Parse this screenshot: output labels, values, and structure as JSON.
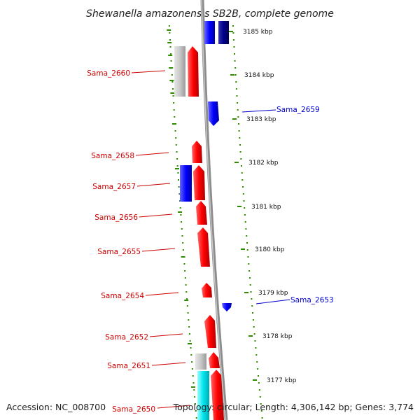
{
  "title": "Shewanella amazonensis SB2B, complete genome",
  "footer": {
    "accession": "Accession: NC_008700",
    "summary": "Topology: circular; Length: 4,306,142 bp; Genes: 3,774"
  },
  "colors": {
    "forward_gene": "#ff0000",
    "reverse_gene": "#0000ff",
    "forward_label": "#cc0000",
    "reverse_label": "#0000cc",
    "other_gene_gray": "#c8c8c8",
    "other_gene_cyan": "#00e5ee",
    "tick_marks": "#2e8b00",
    "backbone": "#8c8c8c"
  },
  "kbp_ticks": [
    "3185 kbp",
    "3184 kbp",
    "3183 kbp",
    "3182 kbp",
    "3181 kbp",
    "3180 kbp",
    "3179 kbp",
    "3178 kbp",
    "3177 kbp"
  ],
  "gene_labels_left": [
    "Sama_2660",
    "Sama_2658",
    "Sama_2657",
    "Sama_2656",
    "Sama_2655",
    "Sama_2654",
    "Sama_2652",
    "Sama_2651",
    "Sama_2650"
  ],
  "gene_labels_right": [
    "Sama_2659",
    "Sama_2653"
  ]
}
